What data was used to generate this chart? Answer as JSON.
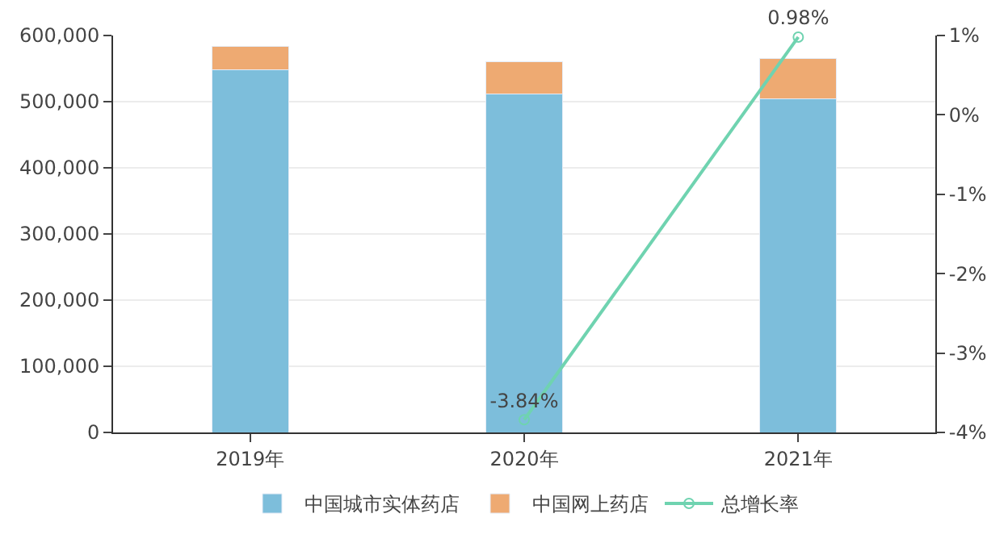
{
  "chart_data": {
    "type": "bar",
    "stacked": true,
    "categories": [
      "2019年",
      "2020年",
      "2021年"
    ],
    "series": [
      {
        "name": "中国城市实体药店",
        "color": "#7dbedb",
        "values": [
          548000,
          511000,
          504000
        ]
      },
      {
        "name": "中国网上药店",
        "color": "#eeaa72",
        "values": [
          35000,
          49000,
          61000
        ]
      },
      {
        "name": "总增长率",
        "type": "line",
        "axis": "y2",
        "color": "#6fd3b0",
        "marker": "circle",
        "values": [
          null,
          -3.84,
          0.98
        ],
        "value_labels": [
          null,
          "-3.84%",
          "0.98%"
        ]
      }
    ],
    "ylim": [
      0,
      600000
    ],
    "yticks": [
      {
        "value": 0,
        "label": "0"
      },
      {
        "value": 100000,
        "label": "100,000"
      },
      {
        "value": 200000,
        "label": "200,000"
      },
      {
        "value": 300000,
        "label": "300,000"
      },
      {
        "value": 400000,
        "label": "400,000"
      },
      {
        "value": 500000,
        "label": "500,000"
      },
      {
        "value": 600000,
        "label": "600,000"
      }
    ],
    "y2lim": [
      -4,
      1
    ],
    "y2ticks": [
      {
        "value": -4,
        "label": "-4%"
      },
      {
        "value": -3,
        "label": "-3%"
      },
      {
        "value": -2,
        "label": "-2%"
      },
      {
        "value": -1,
        "label": "-1%"
      },
      {
        "value": 0,
        "label": "0%"
      },
      {
        "value": 1,
        "label": "1%"
      }
    ],
    "grid": "y",
    "legend": "bottom"
  }
}
